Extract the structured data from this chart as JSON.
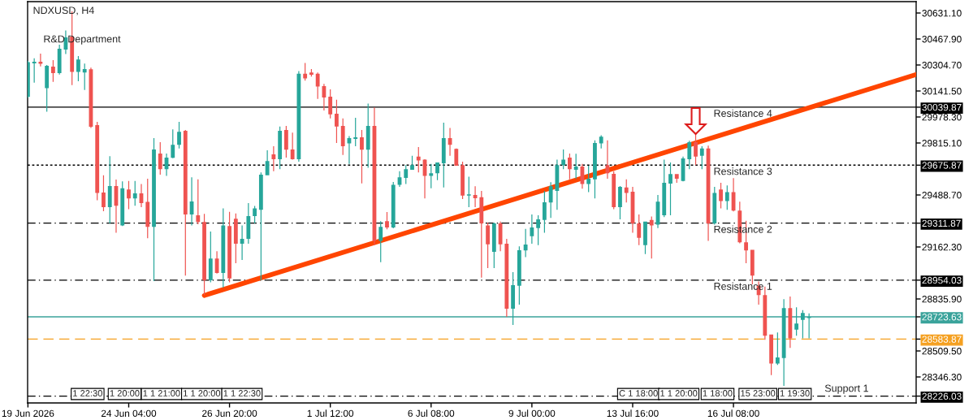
{
  "chart_data": {
    "type": "candlestick",
    "title": "NDXUSD, H4",
    "categories": [
      "19 Jun 2026",
      null,
      null,
      null,
      null,
      null,
      null,
      null,
      null,
      null,
      null,
      null,
      null,
      null,
      null,
      null,
      "24 Jun 04:00",
      null,
      null,
      null,
      null,
      null,
      null,
      null,
      null,
      null,
      null,
      null,
      null,
      null,
      null,
      null,
      "26 Jun 20:00",
      null,
      null,
      null,
      null,
      null,
      null,
      null,
      null,
      null,
      null,
      null,
      null,
      null,
      null,
      null,
      "1 Jul 12:00",
      null,
      null,
      null,
      null,
      null,
      null,
      null,
      null,
      null,
      null,
      null,
      null,
      null,
      null,
      null,
      "6 Jul 08:00",
      null,
      null,
      null,
      null,
      null,
      null,
      null,
      null,
      null,
      null,
      null,
      null,
      null,
      null,
      null,
      "9 Jul 00:00",
      null,
      null,
      null,
      null,
      null,
      null,
      null,
      null,
      null,
      null,
      null,
      null,
      null,
      null,
      null,
      "13 Jul 16:00",
      null,
      null,
      null,
      null,
      null,
      null,
      null,
      null,
      null,
      null,
      null,
      null,
      null,
      null,
      null,
      "16 Jul 08:00",
      null,
      null,
      null,
      null,
      null,
      null,
      null,
      null,
      null,
      null,
      null,
      null,
      null,
      null,
      null,
      null,
      null,
      null,
      null,
      null,
      null,
      null,
      null,
      null,
      null,
      null,
      null,
      null,
      null
    ],
    "ohlc": [
      [
        30104,
        30330,
        30100,
        30322
      ],
      [
        30315,
        30347,
        30194,
        30325
      ],
      [
        30325,
        30376,
        30296,
        30312
      ],
      [
        30159,
        30305,
        30012,
        30300
      ],
      [
        30295,
        30335,
        30199,
        30254
      ],
      [
        30254,
        30432,
        30245,
        30407
      ],
      [
        30402,
        30521,
        30373,
        30478
      ],
      [
        30483,
        30641,
        30179,
        30261
      ],
      [
        30261,
        30361,
        30203,
        30339
      ],
      [
        30257,
        30313,
        30148,
        30279
      ],
      [
        30278,
        30288,
        29910,
        29917
      ],
      [
        29927,
        29948,
        29455,
        29501
      ],
      [
        29504,
        29613,
        29387,
        29412
      ],
      [
        29412,
        29732,
        29310,
        29545
      ],
      [
        29545,
        29586,
        29251,
        29421
      ],
      [
        29298,
        29574,
        29293,
        29531
      ],
      [
        29523,
        29577,
        29400,
        29467
      ],
      [
        29467,
        29577,
        29421,
        29499
      ],
      [
        29499,
        29557,
        29412,
        29438
      ],
      [
        29445,
        29591,
        29217,
        29288
      ],
      [
        29288,
        29846,
        28948,
        29774
      ],
      [
        29749,
        29820,
        29616,
        29650
      ],
      [
        29650,
        29749,
        29608,
        29723
      ],
      [
        29722,
        29900,
        29720,
        29803
      ],
      [
        29803,
        29948,
        29781,
        29885
      ],
      [
        29892,
        29897,
        28982,
        29366
      ],
      [
        29366,
        29599,
        29298,
        29448
      ],
      [
        29361,
        29587,
        29305,
        29319
      ],
      [
        29319,
        29370,
        28860,
        28953
      ],
      [
        28953,
        29259,
        28941,
        29089
      ],
      [
        29089,
        29135,
        28995,
        28999
      ],
      [
        28999,
        29404,
        28907,
        29298
      ],
      [
        29293,
        29383,
        28941,
        28965
      ],
      [
        29339,
        29373,
        29060,
        29183
      ],
      [
        29183,
        29298,
        29081,
        29213
      ],
      [
        29213,
        29438,
        29183,
        29356
      ],
      [
        29356,
        29420,
        29310,
        29404
      ],
      [
        29395,
        29630,
        28953,
        29616
      ],
      [
        29613,
        29769,
        29613,
        29701
      ],
      [
        29744,
        29795,
        29638,
        29713
      ],
      [
        29713,
        29919,
        29650,
        29892
      ],
      [
        29897,
        29922,
        29723,
        29773
      ],
      [
        29774,
        29880,
        29710,
        29713
      ],
      [
        29713,
        30267,
        29698,
        30250
      ],
      [
        30250,
        30318,
        30206,
        30220
      ],
      [
        30257,
        30279,
        30232,
        30244
      ],
      [
        30250,
        30257,
        30092,
        30169
      ],
      [
        30172,
        30186,
        30019,
        30101
      ],
      [
        30106,
        30152,
        29970,
        29995
      ],
      [
        29999,
        30087,
        29815,
        29919
      ],
      [
        29922,
        29970,
        29740,
        29795
      ],
      [
        29812,
        29858,
        29684,
        29846
      ],
      [
        29841,
        29973,
        29795,
        29851
      ],
      [
        29851,
        29897,
        29562,
        29773
      ],
      [
        29773,
        30062,
        29659,
        29922
      ],
      [
        29922,
        30038,
        29174,
        29200
      ],
      [
        29200,
        29324,
        29067,
        29288
      ],
      [
        29324,
        29382,
        29273,
        29285
      ],
      [
        29285,
        29570,
        29280,
        29553
      ],
      [
        29552,
        29638,
        29540,
        29599
      ],
      [
        29596,
        29676,
        29557,
        29650
      ],
      [
        29647,
        29735,
        29647,
        29676
      ],
      [
        29730,
        29790,
        29630,
        29705
      ],
      [
        29710,
        29713,
        29467,
        29608
      ],
      [
        29608,
        29684,
        29531,
        29625
      ],
      [
        29625,
        29693,
        29582,
        29693
      ],
      [
        29688,
        29943,
        29536,
        29846
      ],
      [
        29846,
        29909,
        29735,
        29803
      ],
      [
        29778,
        29781,
        29672,
        29672
      ],
      [
        29676,
        29698,
        29463,
        29485
      ],
      [
        29485,
        29604,
        29412,
        29492
      ],
      [
        29489,
        29543,
        29412,
        29468
      ],
      [
        29475,
        29514,
        28970,
        29310
      ],
      [
        29298,
        29315,
        29030,
        29179
      ],
      [
        29132,
        29315,
        29030,
        29310
      ],
      [
        29310,
        29322,
        29135,
        29179
      ],
      [
        29183,
        29213,
        28724,
        28775
      ],
      [
        28775,
        29004,
        28673,
        28923
      ],
      [
        28919,
        29166,
        28800,
        29142
      ],
      [
        29140,
        29276,
        29098,
        29178
      ],
      [
        29230,
        29366,
        29183,
        29285
      ],
      [
        29281,
        29361,
        29174,
        29336
      ],
      [
        29332,
        29514,
        29251,
        29443
      ],
      [
        29441,
        29569,
        29344,
        29543
      ],
      [
        29514,
        29710,
        29395,
        29676
      ],
      [
        29676,
        29774,
        29650,
        29710
      ],
      [
        29723,
        29749,
        29587,
        29650
      ],
      [
        29647,
        29747,
        29591,
        29667
      ],
      [
        29667,
        29684,
        29528,
        29557
      ],
      [
        29557,
        29672,
        29506,
        29591
      ],
      [
        29587,
        29832,
        29467,
        29815
      ],
      [
        29812,
        29863,
        29781,
        29854
      ],
      [
        29676,
        29832,
        29591,
        29625
      ],
      [
        29621,
        29638,
        29400,
        29412
      ],
      [
        29412,
        29545,
        29336,
        29540
      ],
      [
        29536,
        29587,
        29441,
        29502
      ],
      [
        29509,
        29540,
        29251,
        29310
      ],
      [
        29310,
        29366,
        29174,
        29220
      ],
      [
        29174,
        29322,
        29118,
        29322
      ],
      [
        29332,
        29353,
        29089,
        29298
      ],
      [
        29302,
        29489,
        29281,
        29446
      ],
      [
        29361,
        29710,
        29350,
        29565
      ],
      [
        29560,
        29693,
        29361,
        29620
      ],
      [
        29620,
        29620,
        29565,
        29591
      ],
      [
        29577,
        29730,
        29574,
        29718
      ],
      [
        29713,
        29829,
        29650,
        29820
      ],
      [
        29820,
        29871,
        29676,
        29730
      ],
      [
        29735,
        29795,
        29650,
        29781
      ],
      [
        29781,
        29798,
        29200,
        29310
      ],
      [
        29310,
        29540,
        29302,
        29502
      ],
      [
        29523,
        29565,
        29404,
        29451
      ],
      [
        29451,
        29548,
        29395,
        29506
      ],
      [
        29506,
        29594,
        29385,
        29390
      ],
      [
        29390,
        29446,
        29185,
        29191
      ],
      [
        29191,
        29327,
        29060,
        29140
      ],
      [
        29144,
        29144,
        28928,
        28982
      ],
      [
        28919,
        28945,
        28800,
        28860
      ],
      [
        28860,
        28914,
        28579,
        28605
      ],
      [
        28613,
        28613,
        28358,
        28431
      ],
      [
        28431,
        28625,
        28421,
        28469
      ],
      [
        28465,
        28834,
        28290,
        28778
      ],
      [
        28778,
        28851,
        28528,
        28588
      ],
      [
        28644,
        28783,
        28605,
        28681
      ],
      [
        28705,
        28766,
        28588,
        28748
      ],
      [
        28716,
        28746,
        28588,
        28724
      ],
      null,
      null,
      null,
      null,
      null,
      null,
      null,
      null,
      null,
      null,
      null,
      null,
      null,
      null,
      null,
      null,
      null
    ],
    "colors": [
      "#26a69a",
      "#26a69a",
      "#ef5350",
      "#26a69a",
      "#ef5350",
      "#26a69a",
      "#26a69a",
      "#ef5350",
      "#26a69a",
      "#26a69a",
      "#ef5350",
      "#ef5350",
      "#ef5350",
      "#26a69a",
      "#ef5350",
      "#26a69a",
      "#ef5350",
      "#26a69a",
      "#ef5350",
      "#ef5350",
      "#26a69a",
      "#ef5350",
      "#26a69a",
      "#26a69a",
      "#26a69a",
      "#ef5350",
      "#26a69a",
      "#ef5350",
      "#ef5350",
      "#26a69a",
      "#ef5350",
      "#26a69a",
      "#ef5350",
      "#ef5350",
      "#26a69a",
      "#26a69a",
      "#26a69a",
      "#26a69a",
      "#26a69a",
      "#ef5350",
      "#26a69a",
      "#ef5350",
      "#ef5350",
      "#26a69a",
      "#ef5350",
      "#ef5350",
      "#ef5350",
      "#ef5350",
      "#ef5350",
      "#ef5350",
      "#ef5350",
      "#26a69a",
      "#26a69a",
      "#ef5350",
      "#26a69a",
      "#ef5350",
      "#26a69a",
      "#ef5350",
      "#26a69a",
      "#26a69a",
      "#26a69a",
      "#26a69a",
      "#ef5350",
      "#ef5350",
      "#26a69a",
      "#26a69a",
      "#26a69a",
      "#ef5350",
      "#ef5350",
      "#ef5350",
      "#26a69a",
      "#ef5350",
      "#ef5350",
      "#ef5350",
      "#26a69a",
      "#ef5350",
      "#ef5350",
      "#26a69a",
      "#26a69a",
      "#26a69a",
      "#26a69a",
      "#26a69a",
      "#26a69a",
      "#26a69a",
      "#26a69a",
      "#26a69a",
      "#ef5350",
      "#26a69a",
      "#ef5350",
      "#26a69a",
      "#26a69a",
      "#26a69a",
      "#ef5350",
      "#ef5350",
      "#26a69a",
      "#ef5350",
      "#ef5350",
      "#ef5350",
      "#26a69a",
      "#ef5350",
      "#26a69a",
      "#26a69a",
      "#26a69a",
      "#ef5350",
      "#26a69a",
      "#26a69a",
      "#ef5350",
      "#26a69a",
      "#ef5350",
      "#26a69a",
      "#ef5350",
      "#26a69a",
      "#ef5350",
      "#ef5350",
      "#ef5350",
      "#ef5350",
      "#ef5350",
      "#ef5350",
      "#ef5350",
      "#26a69a",
      "#26a69a",
      "#ef5350",
      "#26a69a",
      "#26a69a",
      "#26a69a",
      null,
      null,
      null,
      null,
      null,
      null,
      null,
      null,
      null,
      null,
      null,
      null,
      null,
      null,
      null,
      null,
      null
    ],
    "series": [
      {
        "type": "line",
        "color": "#ff4500",
        "values": [
          null,
          null,
          null,
          null,
          null,
          null,
          null,
          null,
          null,
          null,
          null,
          null,
          null,
          null,
          null,
          null,
          null,
          null,
          null,
          null,
          null,
          null,
          null,
          null,
          null,
          null,
          null,
          null,
          28858,
          null,
          null,
          null,
          null,
          null,
          null,
          null,
          null,
          null,
          null,
          null,
          null,
          null,
          null,
          null,
          null,
          null,
          null,
          null,
          null,
          null,
          null,
          null,
          null,
          null,
          null,
          null,
          null,
          null,
          null,
          null,
          null,
          null,
          null,
          null,
          null,
          null,
          null,
          null,
          null,
          null,
          null,
          null,
          null,
          null,
          null,
          null,
          null,
          null,
          null,
          null,
          null,
          null,
          null,
          null,
          null,
          null,
          null,
          null,
          null,
          null,
          null,
          null,
          null,
          null,
          null,
          null,
          null,
          null,
          null,
          null,
          null,
          null,
          null,
          null,
          null,
          null,
          null,
          null,
          null,
          null,
          null,
          null,
          null,
          null,
          null,
          null,
          null,
          null,
          null,
          null,
          null,
          null,
          null,
          null,
          null,
          null,
          null,
          null,
          null,
          null,
          null,
          null,
          null,
          null,
          null,
          null,
          null,
          null,
          null,
          null,
          null,
          30245
        ]
      }
    ],
    "ylim": [
      28183.1,
      30702.5
    ],
    "yticks": [
      28226.03,
      {
        "value": 28346.3,
        "label": "28346.30"
      },
      {
        "value": 28509.5,
        "label": "28509.50"
      },
      28583.87,
      28723.63,
      {
        "value": 28835.9,
        "label": "28835.90"
      },
      28954.03,
      {
        "value": 29162.3,
        "label": "29162.30"
      },
      29311.87,
      {
        "value": 29488.7,
        "label": "29488.70"
      },
      29675.87,
      {
        "value": 29815.1,
        "label": "29815.10"
      },
      {
        "value": 29978.3,
        "label": "29978.30"
      },
      30039.87,
      {
        "value": 30141.5,
        "label": "30141.50"
      },
      {
        "value": 30304.7,
        "label": "30304.70"
      },
      {
        "value": 30467.9,
        "label": "30467.90"
      },
      {
        "value": 30631.1,
        "label": "30631.10"
      }
    ],
    "ref_lines": [
      {
        "axis": "y",
        "value": 30039.87,
        "label": "Resistance 4",
        "color": "#000000",
        "line_style": "solid"
      },
      {
        "axis": "y",
        "value": 29675.87,
        "label": "Resistance 3",
        "color": "#000000",
        "line_style": "dotted"
      },
      {
        "axis": "y",
        "value": 29311.87,
        "label": "Resistance 2",
        "color": "#000000",
        "line_style": "dashdot"
      },
      {
        "axis": "y",
        "value": 28954.03,
        "label": "Resistance 1",
        "color": "#000000",
        "line_style": "dashdot"
      },
      {
        "axis": "y",
        "value": 28723.63,
        "color": "#3aa39b",
        "line_style": "solid"
      },
      {
        "axis": "y",
        "value": 28583.87,
        "color": "#f5a020",
        "line_style": "dashed"
      },
      {
        "axis": "y",
        "value": 28226.03,
        "label": "Support 1",
        "color": "#000000",
        "line_style": "dashdot"
      }
    ],
    "annotations": [
      "R&D Department",
      "1 22:30",
      "1 20:00",
      "1 1 21:00",
      "1 1 20:00",
      "1 1 22:30",
      "C 1 18:00",
      "1 1 20:00",
      "1 18:00",
      "15 23:00",
      "1 19:30"
    ],
    "grid": false
  }
}
